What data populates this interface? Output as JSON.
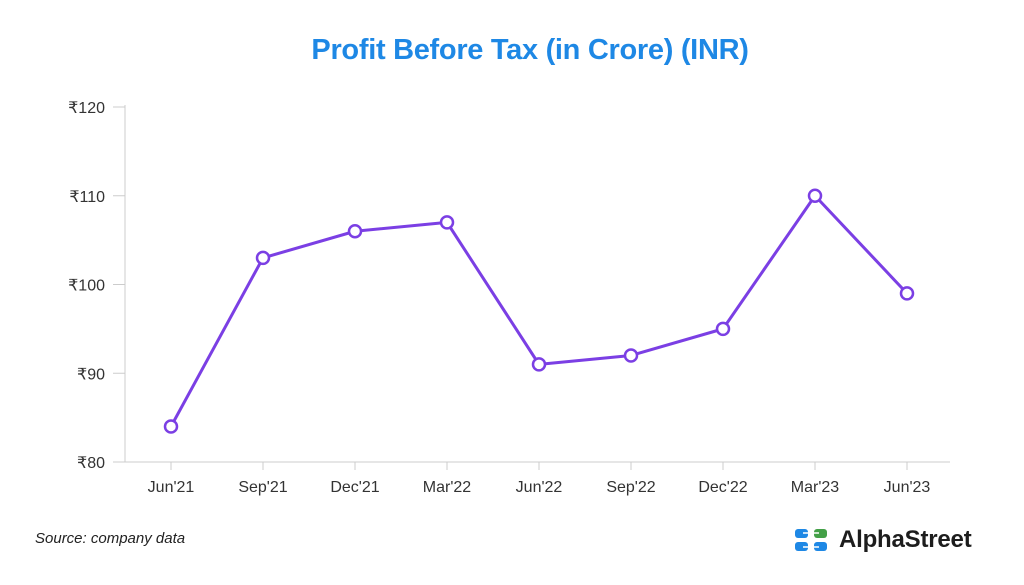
{
  "chart_data": {
    "type": "line",
    "title": "Profit Before Tax (in Crore) (INR)",
    "categories": [
      "Jun'21",
      "Sep'21",
      "Dec'21",
      "Mar'22",
      "Jun'22",
      "Sep'22",
      "Dec'22",
      "Mar'23",
      "Jun'23"
    ],
    "series": [
      {
        "values": [
          84,
          103,
          106,
          107,
          91,
          92,
          95,
          110,
          99
        ]
      }
    ],
    "ylim": [
      80,
      120
    ],
    "yticks": [
      80,
      90,
      100,
      110,
      120
    ],
    "ytick_labels": [
      "₹80",
      "₹90",
      "₹100",
      "₹110",
      "₹120"
    ],
    "grid": false,
    "colors": {
      "title": "#1e88e5",
      "line": "#7b3fe4",
      "axis": "#cccccc"
    }
  },
  "footer": {
    "source": "Source: company data",
    "brand": "AlphaStreet",
    "logo_icon": "alphastreet-logo-icon"
  }
}
